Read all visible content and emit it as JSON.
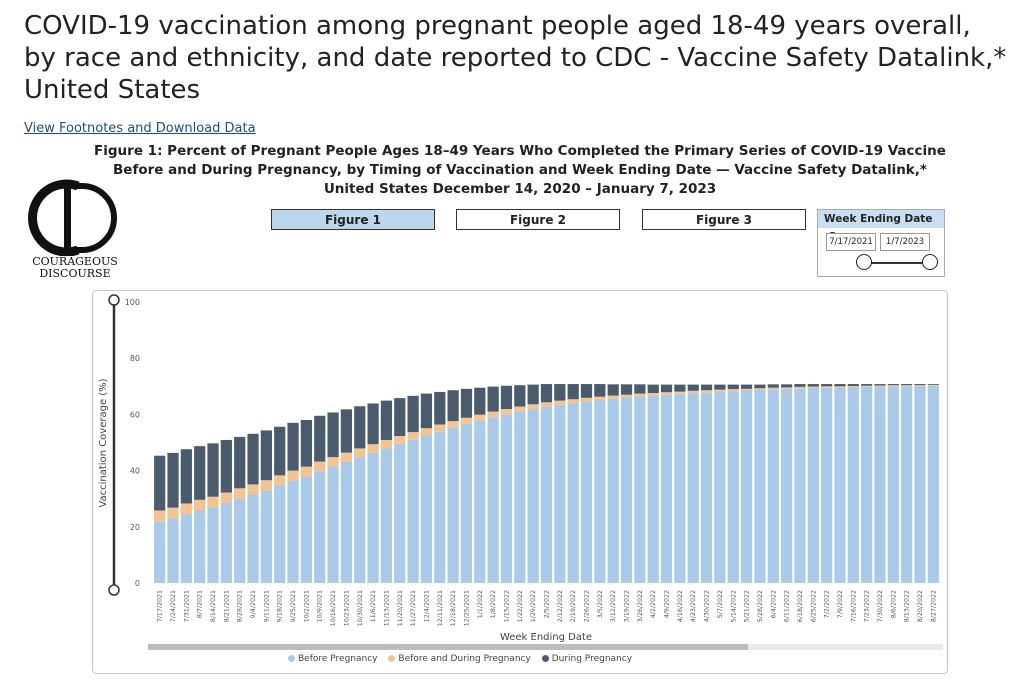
{
  "page": {
    "title": "COVID-19 vaccination among pregnant people aged 18-49 years overall, by race and ethnicity, and date reported to CDC - Vaccine Safety Datalink,* United States",
    "footnote_link": "View Footnotes and Download Data"
  },
  "figure_heading": {
    "line1": "Figure 1: Percent of Pregnant People Ages 18–49 Years Who Completed the Primary Series of COVID-19 Vaccine",
    "line2": "Before and During Pregnancy, by Timing of Vaccination and Week Ending Date — Vaccine Safety Datalink,*",
    "line3": "United States December 14, 2020 – January 7, 2023"
  },
  "logo": {
    "line1": "Courageous",
    "line2": "Discourse"
  },
  "figure_buttons": [
    {
      "label": "Figure 1",
      "active": true
    },
    {
      "label": "Figure 2",
      "active": false
    },
    {
      "label": "Figure 3",
      "active": false
    }
  ],
  "week_filter": {
    "title": "Week Ending Date",
    "start": "7/17/2021",
    "end": "1/7/2023",
    "info_icon": "info-icon"
  },
  "colors": {
    "before": "#a9cbe9",
    "before_during": "#f5c48e",
    "during": "#4a5b6e",
    "accent": "#bcd6ee"
  },
  "chart_data": {
    "type": "bar",
    "stacked": true,
    "ylabel": "Vaccination Coverage (%)",
    "xlabel": "Week Ending Date",
    "ylim": [
      0,
      100
    ],
    "yticks": [
      0,
      20,
      40,
      60,
      80,
      100
    ],
    "grid": false,
    "legend_position": "bottom",
    "categories": [
      "7/17/2021",
      "7/24/2021",
      "7/31/2021",
      "8/7/2021",
      "8/14/2021",
      "8/21/2021",
      "8/28/2021",
      "9/4/2021",
      "9/11/2021",
      "9/18/2021",
      "9/25/2021",
      "10/2/2021",
      "10/9/2021",
      "10/16/2021",
      "10/23/2021",
      "10/30/2021",
      "11/6/2021",
      "11/13/2021",
      "11/20/2021",
      "11/27/2021",
      "12/4/2021",
      "12/11/2021",
      "12/18/2021",
      "12/25/2021",
      "1/1/2022",
      "1/8/2022",
      "1/15/2022",
      "1/22/2022",
      "1/29/2022",
      "2/5/2022",
      "2/12/2022",
      "2/19/2022",
      "2/26/2022",
      "3/5/2022",
      "3/12/2022",
      "3/19/2022",
      "3/26/2022",
      "4/2/2022",
      "4/9/2022",
      "4/16/2022",
      "4/23/2022",
      "4/30/2022",
      "5/7/2022",
      "5/14/2022",
      "5/21/2022",
      "5/28/2022",
      "6/4/2022",
      "6/11/2022",
      "6/18/2022",
      "6/25/2022",
      "7/2/2022",
      "7/9/2022",
      "7/16/2022",
      "7/23/2022",
      "7/30/2022",
      "8/6/2022",
      "8/13/2022",
      "8/20/2022",
      "8/27/2022"
    ],
    "series": [
      {
        "name": "Before Pregnancy",
        "values": [
          22.0,
          23.0,
          24.5,
          25.8,
          27.0,
          28.5,
          30.0,
          31.5,
          33.0,
          34.8,
          36.5,
          38.0,
          39.8,
          41.5,
          43.2,
          44.8,
          46.4,
          48.0,
          49.5,
          51.0,
          52.5,
          54.0,
          55.3,
          56.6,
          57.8,
          59.0,
          60.0,
          61.0,
          61.9,
          62.7,
          63.4,
          64.0,
          64.6,
          65.1,
          65.6,
          66.0,
          66.4,
          66.7,
          67.0,
          67.3,
          67.6,
          67.9,
          68.1,
          68.3,
          68.5,
          68.7,
          68.9,
          69.1,
          69.3,
          69.4,
          69.5,
          69.6,
          69.7,
          69.8,
          69.9,
          70.0,
          70.0,
          70.1,
          70.2
        ]
      },
      {
        "name": "Before and During Pregnancy",
        "values": [
          3.8,
          3.8,
          3.8,
          3.8,
          3.7,
          3.7,
          3.7,
          3.6,
          3.6,
          3.5,
          3.5,
          3.4,
          3.4,
          3.3,
          3.2,
          3.1,
          3.0,
          2.9,
          2.8,
          2.7,
          2.6,
          2.4,
          2.3,
          2.2,
          2.1,
          2.0,
          1.9,
          1.8,
          1.7,
          1.6,
          1.5,
          1.4,
          1.3,
          1.2,
          1.1,
          1.0,
          1.0,
          0.9,
          0.9,
          0.8,
          0.8,
          0.7,
          0.7,
          0.7,
          0.6,
          0.6,
          0.6,
          0.5,
          0.5,
          0.5,
          0.5,
          0.4,
          0.4,
          0.4,
          0.4,
          0.4,
          0.4,
          0.3,
          0.3
        ]
      },
      {
        "name": "During Pregnancy",
        "values": [
          19.5,
          19.5,
          19.3,
          19.1,
          19.0,
          18.7,
          18.3,
          18.0,
          17.7,
          17.3,
          17.0,
          16.6,
          16.3,
          15.9,
          15.4,
          15.0,
          14.5,
          14.0,
          13.5,
          12.9,
          12.3,
          11.6,
          11.0,
          10.3,
          9.6,
          8.9,
          8.3,
          7.6,
          7.0,
          6.5,
          5.9,
          5.4,
          4.9,
          4.5,
          4.0,
          3.7,
          3.3,
          3.0,
          2.7,
          2.5,
          2.2,
          2.0,
          1.8,
          1.6,
          1.5,
          1.3,
          1.2,
          1.1,
          1.0,
          0.9,
          0.8,
          0.8,
          0.7,
          0.6,
          0.5,
          0.4,
          0.4,
          0.4,
          0.3
        ]
      }
    ]
  }
}
